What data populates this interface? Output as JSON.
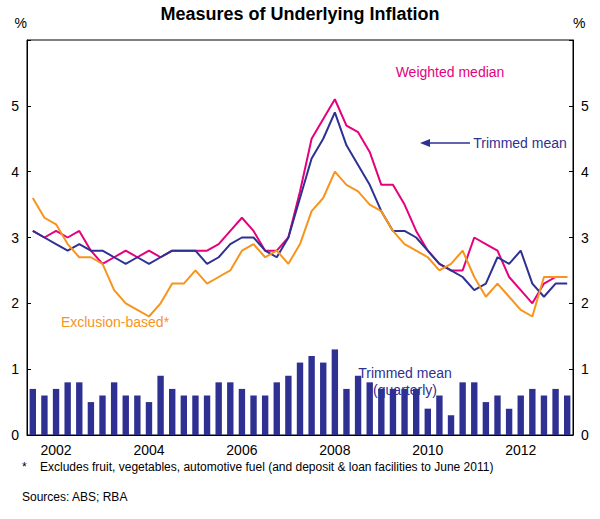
{
  "chart_data": {
    "type": "line",
    "title": "Measures of Underlying Inflation",
    "y_label": "%",
    "categories": [
      null,
      null,
      "2002",
      null,
      null,
      null,
      null,
      null,
      null,
      null,
      "2004",
      null,
      null,
      null,
      null,
      null,
      null,
      null,
      "2006",
      null,
      null,
      null,
      null,
      null,
      null,
      null,
      "2008",
      null,
      null,
      null,
      null,
      null,
      null,
      null,
      "2010",
      null,
      null,
      null,
      null,
      null,
      null,
      null,
      "2012",
      null,
      null,
      null,
      null
    ],
    "series": [
      {
        "name": "Weighted median",
        "color": "#e5007e",
        "values": [
          3.1,
          3.0,
          3.1,
          3.0,
          3.1,
          2.8,
          2.6,
          2.7,
          2.8,
          2.7,
          2.8,
          2.7,
          2.8,
          2.8,
          2.8,
          2.8,
          2.9,
          3.1,
          3.3,
          3.1,
          2.8,
          2.8,
          3.0,
          3.7,
          4.5,
          4.8,
          5.1,
          4.7,
          4.6,
          4.3,
          3.8,
          3.8,
          3.5,
          3.1,
          2.8,
          2.6,
          2.5,
          2.5,
          3.0,
          2.9,
          2.8,
          2.4,
          2.2,
          2.0,
          2.3,
          2.4,
          2.4
        ]
      },
      {
        "name": "Trimmed mean",
        "color": "#2e3192",
        "values": [
          3.1,
          3.0,
          2.9,
          2.8,
          2.9,
          2.8,
          2.8,
          2.7,
          2.6,
          2.7,
          2.6,
          2.7,
          2.8,
          2.8,
          2.8,
          2.6,
          2.7,
          2.9,
          3.0,
          3.0,
          2.8,
          2.7,
          3.0,
          3.6,
          4.2,
          4.5,
          4.9,
          4.4,
          4.1,
          3.8,
          3.4,
          3.1,
          3.1,
          3.0,
          2.8,
          2.6,
          2.5,
          2.4,
          2.2,
          2.3,
          2.7,
          2.6,
          2.8,
          2.3,
          2.1,
          2.3,
          2.3
        ]
      },
      {
        "name": "Exclusion-based*",
        "color": "#f7941d",
        "values": [
          3.6,
          3.3,
          3.2,
          2.9,
          2.7,
          2.7,
          2.6,
          2.2,
          2.0,
          1.9,
          1.8,
          2.0,
          2.3,
          2.3,
          2.5,
          2.3,
          2.4,
          2.5,
          2.8,
          2.9,
          2.7,
          2.8,
          2.6,
          2.9,
          3.4,
          3.6,
          4.0,
          3.8,
          3.7,
          3.5,
          3.4,
          3.1,
          2.9,
          2.8,
          2.7,
          2.5,
          2.6,
          2.8,
          2.4,
          2.1,
          2.3,
          2.1,
          1.9,
          1.8,
          2.4,
          2.4,
          2.4
        ]
      },
      {
        "name": "Trimmed mean (quarterly)",
        "type": "bar",
        "color": "#2e3192",
        "values": [
          0.7,
          0.6,
          0.7,
          0.8,
          0.8,
          0.5,
          0.6,
          0.8,
          0.6,
          0.6,
          0.5,
          0.9,
          0.7,
          0.6,
          0.6,
          0.6,
          0.8,
          0.8,
          0.7,
          0.6,
          0.6,
          0.8,
          0.9,
          1.1,
          1.2,
          1.1,
          1.3,
          0.7,
          0.9,
          0.8,
          0.7,
          0.7,
          0.7,
          0.7,
          0.4,
          0.6,
          0.3,
          0.8,
          0.8,
          0.5,
          0.6,
          0.4,
          0.6,
          0.7,
          0.6,
          0.7,
          0.6
        ]
      }
    ],
    "ylim": [
      0,
      6
    ],
    "yticks": [
      0,
      1,
      2,
      3,
      4,
      5
    ],
    "grid": false,
    "footnote": "*    Excludes fruit, vegetables, automotive fuel (and deposit & loan facilities to June 2011)",
    "source": "Sources: ABS; RBA"
  }
}
